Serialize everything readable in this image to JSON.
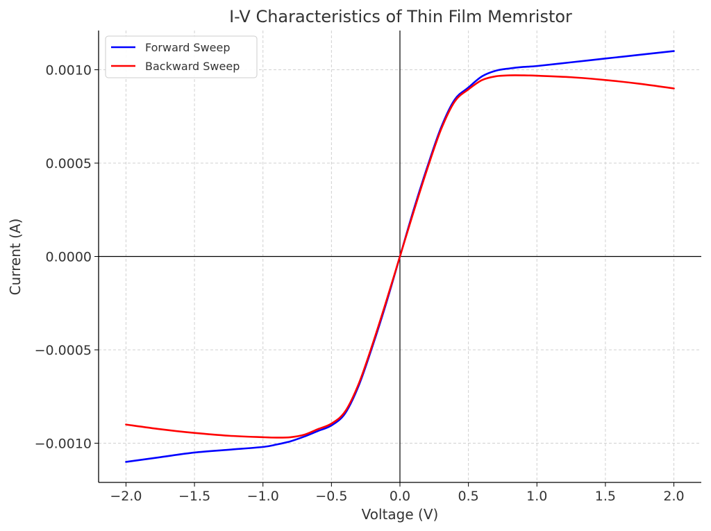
{
  "chart_data": {
    "type": "line",
    "title": "I-V Characteristics of Thin Film Memristor",
    "xlabel": "Voltage (V)",
    "ylabel": "Current (A)",
    "xlim": [
      -2.2,
      2.2
    ],
    "ylim": [
      -0.00121,
      0.00121
    ],
    "x_ticks": [
      -2.0,
      -1.5,
      -1.0,
      -0.5,
      0.0,
      0.5,
      1.0,
      1.5,
      2.0
    ],
    "x_tick_labels": [
      "−2.0",
      "−1.5",
      "−1.0",
      "−0.5",
      "0.0",
      "0.5",
      "1.0",
      "1.5",
      "2.0"
    ],
    "y_ticks": [
      -0.001,
      -0.0005,
      0.0,
      0.0005,
      0.001
    ],
    "y_tick_labels": [
      "−0.0010",
      "−0.0005",
      "0.0000",
      "0.0005",
      "0.0010"
    ],
    "grid": true,
    "legend_position": "top-left",
    "series": [
      {
        "name": "Forward Sweep",
        "color": "#0000ff",
        "x": [
          -2.0,
          -1.75,
          -1.5,
          -1.25,
          -1.0,
          -0.9,
          -0.8,
          -0.7,
          -0.6,
          -0.5,
          -0.4,
          -0.3,
          -0.2,
          -0.1,
          0.0,
          0.1,
          0.2,
          0.3,
          0.4,
          0.5,
          0.6,
          0.7,
          0.8,
          0.9,
          1.0,
          1.25,
          1.5,
          1.75,
          2.0
        ],
        "y": [
          -0.0011,
          -0.001075,
          -0.00105,
          -0.001035,
          -0.00102,
          -0.001007,
          -0.00099,
          -0.000965,
          -0.000935,
          -0.000905,
          -0.00084,
          -0.00069,
          -0.00048,
          -0.00025,
          0.0,
          0.00025,
          0.00048,
          0.00069,
          0.00084,
          0.000905,
          0.000965,
          0.000995,
          0.001007,
          0.001015,
          0.00102,
          0.00104,
          0.00106,
          0.00108,
          0.0011
        ]
      },
      {
        "name": "Backward Sweep",
        "color": "#ff0000",
        "x": [
          -2.0,
          -1.75,
          -1.5,
          -1.25,
          -1.0,
          -0.9,
          -0.8,
          -0.7,
          -0.6,
          -0.5,
          -0.4,
          -0.3,
          -0.2,
          -0.1,
          0.0,
          0.1,
          0.2,
          0.3,
          0.4,
          0.5,
          0.6,
          0.7,
          0.8,
          0.9,
          1.0,
          1.25,
          1.5,
          1.75,
          2.0
        ],
        "y": [
          -0.0009,
          -0.000925,
          -0.000945,
          -0.00096,
          -0.000968,
          -0.00097,
          -0.000968,
          -0.000955,
          -0.000925,
          -0.000895,
          -0.00083,
          -0.00068,
          -0.00047,
          -0.00024,
          0.0,
          0.00024,
          0.00047,
          0.00068,
          0.00083,
          0.000895,
          0.000945,
          0.000965,
          0.00097,
          0.00097,
          0.000968,
          0.00096,
          0.000945,
          0.000925,
          0.0009
        ]
      }
    ]
  }
}
